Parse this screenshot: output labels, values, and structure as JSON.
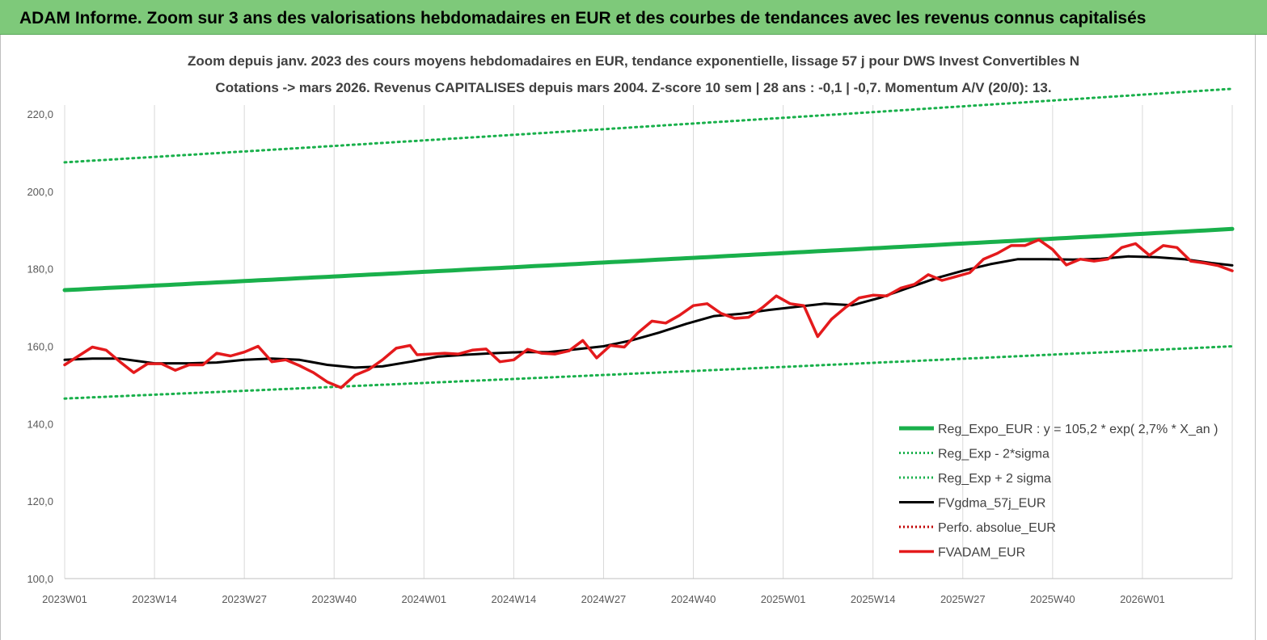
{
  "header": {
    "title": "ADAM Informe. Zoom sur 3 ans des valorisations hebdomadaires en EUR et des courbes de tendances avec les revenus connus capitalisés"
  },
  "chart_data": {
    "type": "line",
    "title": "Zoom depuis janv. 2023 des cours moyens hebdomadaires en EUR, tendance exponentielle, lissage 57 j pour DWS Invest Convertibles N",
    "subtitle": "Cotations -> mars 2026. Revenus CAPITALISES depuis mars 2004. Z-score 10 sem | 28 ans : -0,1 | -0,7. Momentum A/V (20/0): 13.",
    "xlabel": "",
    "ylabel": "",
    "ylim": [
      100,
      220
    ],
    "y_ticks": [
      "100,0",
      "120,0",
      "140,0",
      "160,0",
      "180,0",
      "200,0",
      "220,0"
    ],
    "x_tick_labels": [
      "2023W01",
      "2023W14",
      "2023W27",
      "2023W40",
      "2024W01",
      "2024W14",
      "2024W27",
      "2024W40",
      "2025W01",
      "2025W14",
      "2025W27",
      "2025W40",
      "2026W01"
    ],
    "x_range_weeks": [
      0,
      169
    ],
    "grid": "vertical",
    "legend_position": "bottom-right",
    "series": [
      {
        "name": "Reg_Expo_EUR : y = 105,2 * exp( 2,7% * X_an )",
        "style": "thick-solid",
        "color": "#19b04b",
        "x": [
          0,
          169
        ],
        "y": [
          174.5,
          190.3
        ],
        "curve": "exponential"
      },
      {
        "name": "Reg_Exp - 2*sigma",
        "style": "dotted",
        "color": "#19b04b",
        "x": [
          0,
          169
        ],
        "y": [
          146.5,
          160.0
        ],
        "curve": "exponential"
      },
      {
        "name": "Reg_Exp + 2 sigma",
        "style": "dotted",
        "color": "#19b04b",
        "x": [
          0,
          169
        ],
        "y": [
          207.5,
          226.5
        ],
        "curve": "exponential"
      },
      {
        "name": "FVgdma_57j_EUR",
        "style": "solid",
        "color": "#000000",
        "x": [
          0,
          4,
          8,
          13,
          18,
          22,
          26,
          30,
          34,
          38,
          42,
          46,
          50,
          54,
          58,
          62,
          66,
          70,
          74,
          78,
          82,
          86,
          90,
          94,
          98,
          102,
          106,
          110,
          114,
          118,
          122,
          126,
          130,
          134,
          138,
          142,
          146,
          150,
          154,
          158,
          162,
          166,
          169
        ],
        "y": [
          156.5,
          156.8,
          156.8,
          155.6,
          155.6,
          155.8,
          156.5,
          156.8,
          156.5,
          155.2,
          154.5,
          154.8,
          156.0,
          157.3,
          157.8,
          158.2,
          158.5,
          158.5,
          159.2,
          160.0,
          161.5,
          163.5,
          165.8,
          167.8,
          168.4,
          169.4,
          170.2,
          171.0,
          170.6,
          172.5,
          175.0,
          177.5,
          179.5,
          181.2,
          182.5,
          182.5,
          182.4,
          182.6,
          183.2,
          183.0,
          182.5,
          181.5,
          180.9
        ]
      },
      {
        "name": "Perfo. absolue_EUR",
        "style": "dotted",
        "color": "#c00000",
        "x": [],
        "y": []
      },
      {
        "name": "FVADAM_EUR",
        "style": "thick-solid",
        "color": "#e41a1c",
        "x": [
          0,
          2,
          4,
          6,
          8,
          10,
          12,
          14,
          16,
          18,
          20,
          22,
          24,
          26,
          28,
          30,
          32,
          34,
          36,
          38,
          40,
          42,
          44,
          46,
          48,
          50,
          51,
          53,
          55,
          57,
          59,
          61,
          63,
          65,
          67,
          69,
          71,
          73,
          75,
          77,
          79,
          81,
          83,
          85,
          87,
          89,
          91,
          93,
          95,
          97,
          99,
          101,
          103,
          105,
          107,
          109,
          111,
          113,
          115,
          117,
          119,
          121,
          123,
          125,
          127,
          129,
          131,
          133,
          135,
          137,
          139,
          141,
          143,
          145,
          147,
          149,
          151,
          153,
          155,
          157,
          159,
          161,
          163,
          165,
          167,
          169
        ],
        "y": [
          155.2,
          157.5,
          159.8,
          159.0,
          156.0,
          153.2,
          155.5,
          155.5,
          153.8,
          155.2,
          155.2,
          158.2,
          157.5,
          158.5,
          160.0,
          156.0,
          156.5,
          155.0,
          153.2,
          150.8,
          149.3,
          152.5,
          154.0,
          156.5,
          159.5,
          160.2,
          157.8,
          158.0,
          158.2,
          158.0,
          159.0,
          159.3,
          156.0,
          156.5,
          159.2,
          158.2,
          158.0,
          158.8,
          161.5,
          157.0,
          160.2,
          159.8,
          163.5,
          166.5,
          166.0,
          168.0,
          170.5,
          171.0,
          168.5,
          167.2,
          167.5,
          170.0,
          173.0,
          171.0,
          170.5,
          162.5,
          167.0,
          170.0,
          172.5,
          173.2,
          173.0,
          175.0,
          176.0,
          178.5,
          177.0,
          178.0,
          179.0,
          182.5,
          184.0,
          186.0,
          186.0,
          187.5,
          185.0,
          181.0,
          182.5,
          182.0,
          182.5,
          185.5,
          186.5,
          183.5,
          186.0,
          185.5,
          182.0,
          181.5,
          180.8,
          179.5
        ]
      }
    ]
  }
}
